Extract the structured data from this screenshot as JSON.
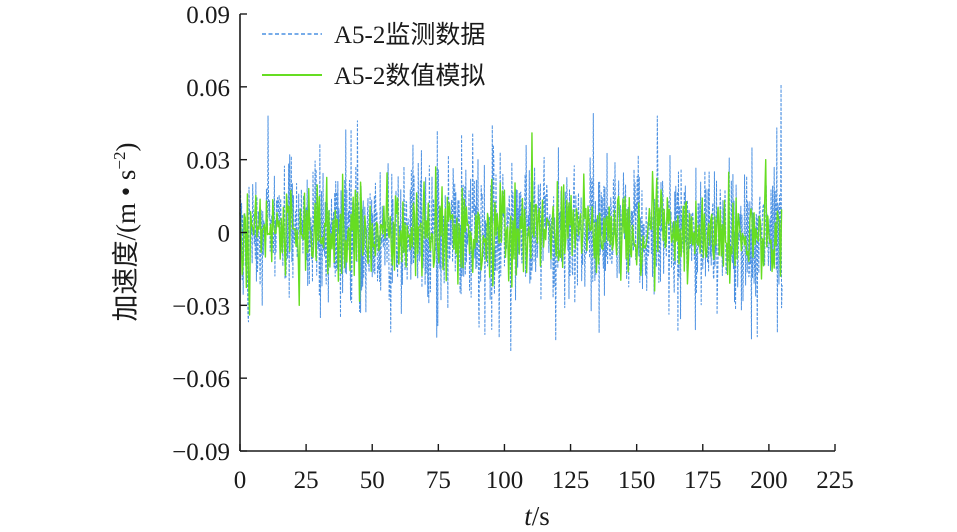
{
  "chart_data": {
    "type": "line",
    "xlabel_var": "t",
    "xlabel_unit": "/s",
    "ylabel_main": "加速度/(m • s",
    "ylabel_sup": "−2",
    "ylabel_close": ")",
    "xlim": [
      0,
      225
    ],
    "ylim": [
      -0.09,
      0.09
    ],
    "xticks": [
      0,
      25,
      50,
      75,
      100,
      125,
      150,
      175,
      200,
      225
    ],
    "yticks": [
      0.09,
      0.06,
      0.03,
      0,
      -0.03,
      -0.06,
      -0.09
    ],
    "ytick_labels": [
      "0.09",
      "0.06",
      "0.03",
      "0",
      "−0.03",
      "−0.06",
      "−0.09"
    ],
    "xtick_labels": [
      "0",
      "25",
      "50",
      "75",
      "100",
      "125",
      "150",
      "175",
      "200",
      "225"
    ],
    "legend_position": "top-left",
    "series": [
      {
        "name": "A5-2监测数据",
        "color": "#4a90e2",
        "style": "dashed",
        "t_range": [
          0,
          205
        ],
        "max": 0.061,
        "min": -0.049,
        "typical_amplitude": 0.022,
        "peaks": [
          [
            10.6,
            0.048
          ],
          [
            44.5,
            0.046
          ],
          [
            102.5,
            -0.049
          ],
          [
            133.7,
            0.049
          ],
          [
            157.7,
            0.048
          ],
          [
            204.5,
            0.061
          ],
          [
            204.8,
            -0.031
          ],
          [
            3.0,
            -0.034
          ],
          [
            38,
            -0.035
          ],
          [
            57,
            -0.041
          ],
          [
            88,
            0.041
          ]
        ]
      },
      {
        "name": "A5-2数值模拟",
        "color": "#66dd22",
        "style": "solid",
        "t_range": [
          0,
          205
        ],
        "max": 0.041,
        "min": -0.034,
        "typical_amplitude": 0.015,
        "peaks": [
          [
            110.5,
            0.041
          ],
          [
            3.5,
            -0.034
          ],
          [
            22.5,
            -0.03
          ],
          [
            199.0,
            0.03
          ]
        ]
      }
    ]
  }
}
